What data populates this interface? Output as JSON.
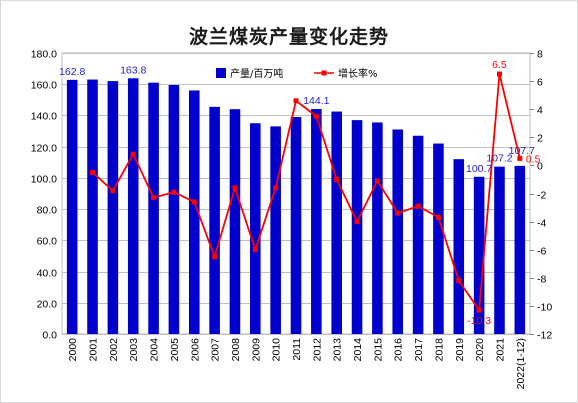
{
  "chart_data": {
    "type": "bar",
    "title": "波兰煤炭产量变化走势",
    "categories": [
      "2000",
      "2001",
      "2002",
      "2003",
      "2004",
      "2005",
      "2006",
      "2007",
      "2008",
      "2009",
      "2010",
      "2011",
      "2012",
      "2013",
      "2014",
      "2015",
      "2016",
      "2017",
      "2018",
      "2019",
      "2020",
      "2021",
      "2022(1-12)"
    ],
    "series": [
      {
        "name": "产量/百万吨",
        "type": "bar",
        "axis": "left",
        "color": "#0000cc",
        "values": [
          162.8,
          163,
          162,
          163.8,
          161,
          159.5,
          156,
          145.5,
          144,
          135,
          133,
          139,
          144.1,
          142.5,
          137,
          135.5,
          131,
          127,
          122,
          112,
          100.7,
          107.2,
          107.7
        ]
      },
      {
        "name": "增长率%",
        "type": "line",
        "axis": "right",
        "color": "#ff0000",
        "values": [
          null,
          -0.5,
          -1.8,
          0.8,
          -2.3,
          -1.9,
          -2.6,
          -6.5,
          -1.6,
          -6.0,
          -1.6,
          4.6,
          3.5,
          -1.0,
          -4.0,
          -1.1,
          -3.4,
          -2.9,
          -3.7,
          -8.2,
          -10.3,
          6.5,
          0.5
        ]
      }
    ],
    "data_labels": {
      "bar": {
        "0": "162.8",
        "3": "163.8",
        "12": "144.1",
        "20": "100.7",
        "21": "107.2",
        "22": "107.7"
      },
      "line": {
        "20": "-10.3",
        "21": "6.5",
        "22": "0.5"
      }
    },
    "y_left": {
      "min": 0,
      "max": 180,
      "step": 20,
      "ticks": [
        "0.0",
        "20.0",
        "40.0",
        "60.0",
        "80.0",
        "100.0",
        "120.0",
        "140.0",
        "160.0",
        "180.0"
      ]
    },
    "y_right": {
      "min": -12,
      "max": 8,
      "step": 2,
      "ticks": [
        "-12",
        "-10",
        "-8",
        "-6",
        "-4",
        "-2",
        "0",
        "2",
        "4",
        "6",
        "8"
      ]
    },
    "grid": true,
    "legend_position": "top-right"
  }
}
